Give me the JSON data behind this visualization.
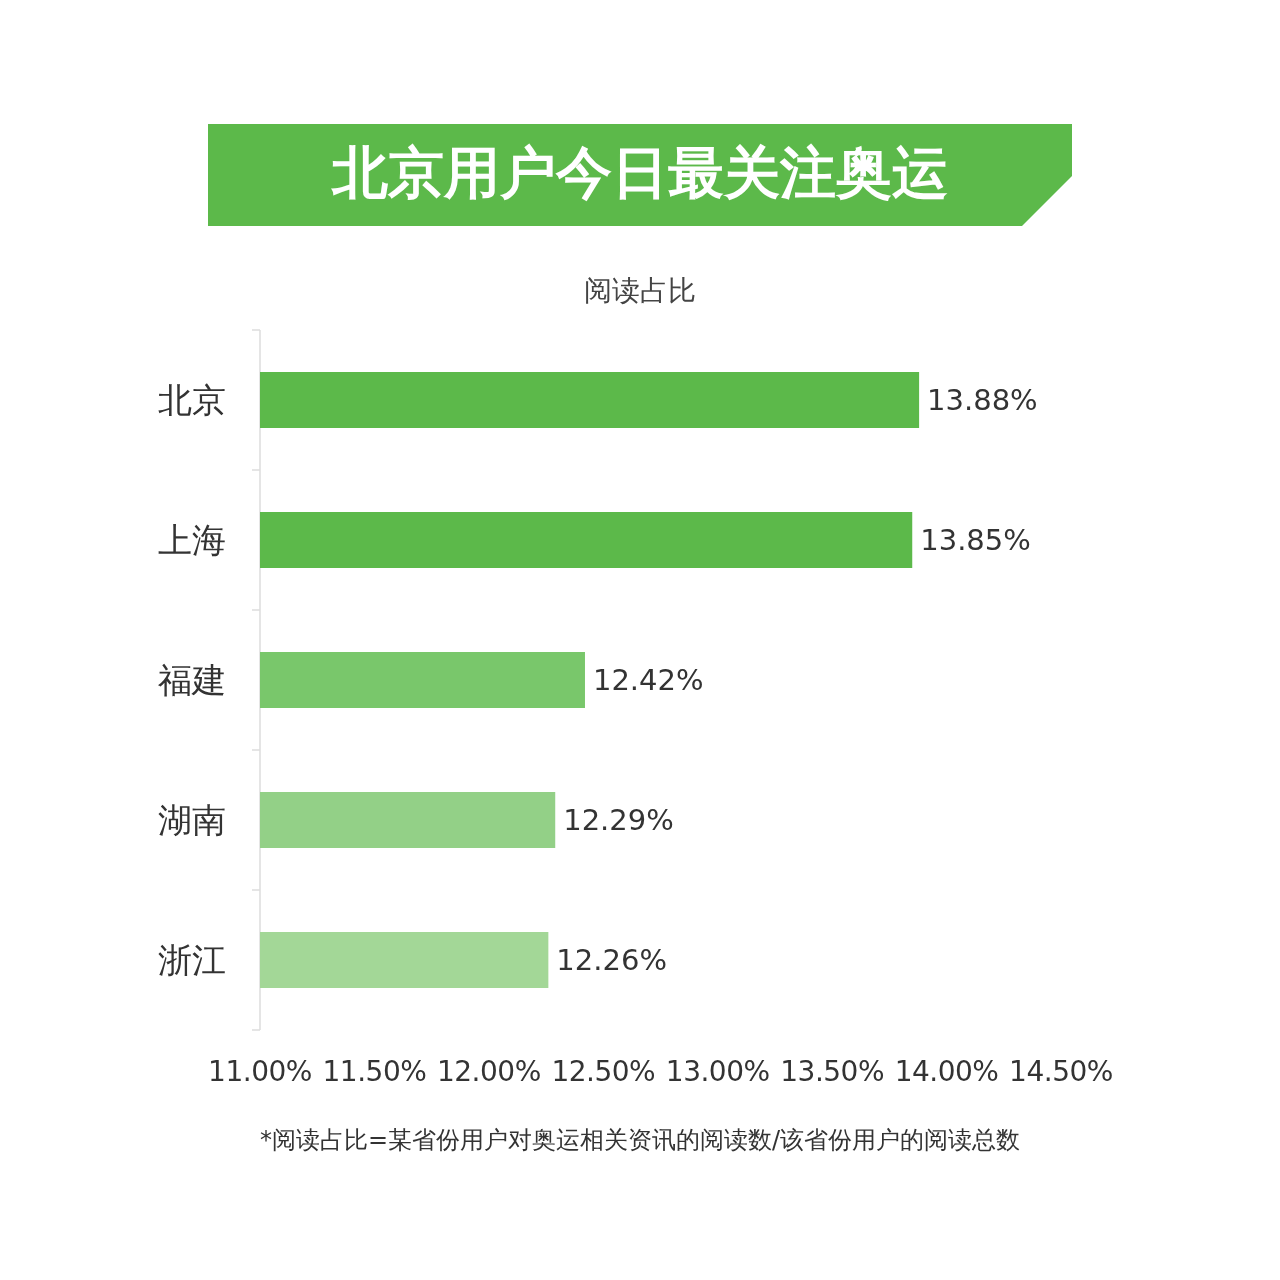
{
  "chart_data": {
    "type": "bar",
    "orientation": "horizontal",
    "title": "北京用户今日最关注奥运",
    "subtitle": "阅读占比",
    "categories": [
      "北京",
      "上海",
      "福建",
      "湖南",
      "浙江"
    ],
    "values": [
      13.88,
      13.85,
      12.42,
      12.29,
      12.26
    ],
    "value_labels": [
      "13.88%",
      "13.85%",
      "12.42%",
      "12.29%",
      "12.26%"
    ],
    "colors": [
      "#5cb94a",
      "#5cb94a",
      "#79c76b",
      "#93d087",
      "#a3d797"
    ],
    "xlim": [
      11,
      14.5
    ],
    "xticks": [
      {
        "value": 11,
        "label": "11.00%"
      },
      {
        "value": 11.5,
        "label": "11.50%"
      },
      {
        "value": 12,
        "label": "12.00%"
      },
      {
        "value": 12.5,
        "label": "12.50%"
      },
      {
        "value": 13,
        "label": "13.00%"
      },
      {
        "value": 13.5,
        "label": "13.50%"
      },
      {
        "value": 14,
        "label": "14.00%"
      },
      {
        "value": 14.5,
        "label": "14.50%"
      }
    ],
    "annotations": [
      "*阅读占比=某省份用户对奥运相关资讯的阅读数/该省份用户的阅读总数"
    ]
  }
}
